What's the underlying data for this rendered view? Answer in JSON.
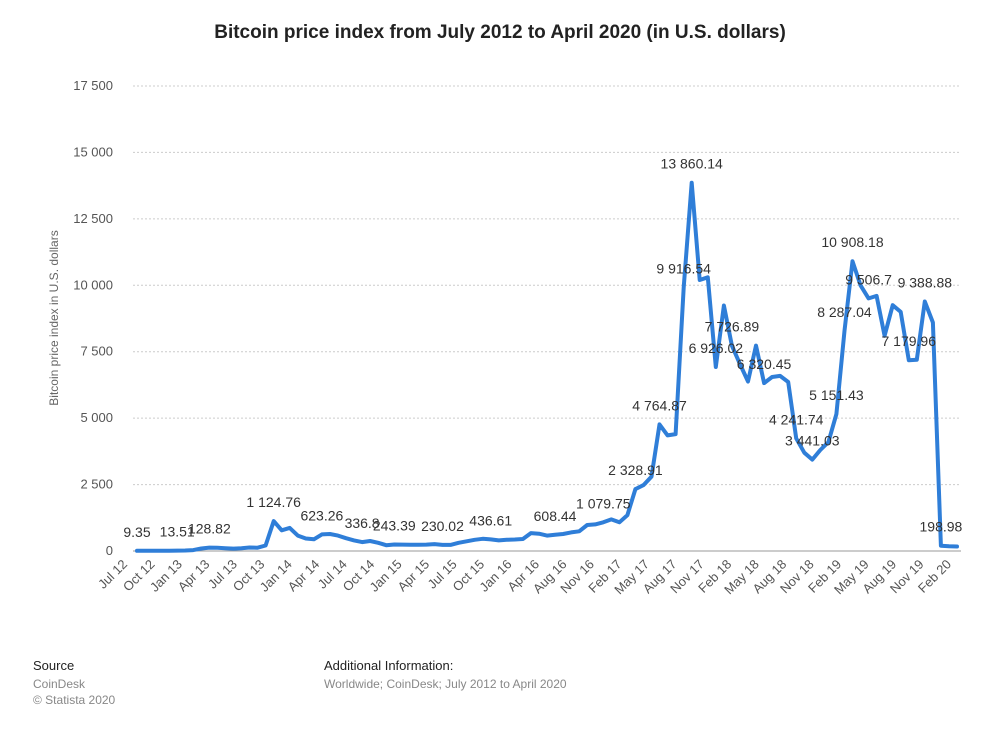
{
  "chart_data": {
    "type": "line",
    "title": "Bitcoin price index from July 2012 to April 2020 (in U.S. dollars)",
    "xlabel": "",
    "ylabel": "Bitcoin price index in U.S. dollars",
    "ylim": [
      0,
      17500
    ],
    "yticks": [
      0,
      2500,
      5000,
      7500,
      10000,
      12500,
      15000,
      17500
    ],
    "ytick_labels": [
      "0",
      "2 500",
      "5 000",
      "7 500",
      "10 000",
      "12 500",
      "15 000",
      "17 500"
    ],
    "grid": true,
    "legend": "none",
    "colors": {
      "line": "#2f7ed8",
      "grid": "#cccccc",
      "text": "#333333"
    },
    "xtick_labels": [
      "Jul 12",
      "Oct 12",
      "Jan 13",
      "Apr 13",
      "Jul 13",
      "Oct 13",
      "Jan 14",
      "Apr 14",
      "Jul 14",
      "Oct 14",
      "Jan 15",
      "Apr 15",
      "Jul 15",
      "Oct 15",
      "Jan 16",
      "Apr 16",
      "Aug 16",
      "Nov 16",
      "Feb 17",
      "May 17",
      "Aug 17",
      "Nov 17",
      "Feb 18",
      "May 18",
      "Aug 18",
      "Nov 18",
      "Feb 19",
      "May 19",
      "Aug 19",
      "Nov 19",
      "Feb 20"
    ],
    "series": [
      {
        "values": [
          9.35,
          11,
          10.5,
          11.5,
          12.5,
          13.51,
          20,
          33,
          95,
          128.82,
          120,
          105,
          90,
          100,
          130,
          124,
          206,
          1124.76,
          780,
          870,
          580,
          470,
          440,
          623.26,
          640,
          580,
          480,
          400,
          336.8,
          375,
          310,
          220,
          243.39,
          240,
          236,
          232,
          240,
          260,
          230.02,
          228,
          310,
          365,
          420,
          460,
          436.61,
          400,
          420,
          432,
          450,
          672,
          650,
          580,
          608.44,
          640,
          700,
          740,
          980,
          1000,
          1079.75,
          1190,
          1080,
          1350,
          2328.91,
          2480,
          2800,
          4764.87,
          4350,
          4400,
          9916.54,
          13860.14,
          10200,
          10300,
          6926.02,
          9240,
          7726.89,
          7040,
          6380,
          7730,
          6320.45,
          6550,
          6590,
          6360,
          4241.74,
          3700,
          3441.03,
          3800,
          4100,
          5151.43,
          8287.04,
          10908.18,
          10000,
          9506.7,
          9600,
          8100,
          9250,
          9000,
          7179.96,
          7200,
          9388.88,
          8600,
          198.98,
          180,
          170
        ],
        "type": "line"
      }
    ],
    "data_labels": [
      {
        "text": "9.35",
        "x": 0,
        "y": 9.35
      },
      {
        "text": "13.51",
        "x": 5,
        "y": 13.51
      },
      {
        "text": "128.82",
        "x": 9,
        "y": 128.82
      },
      {
        "text": "1 124.76",
        "x": 17,
        "y": 1124.76
      },
      {
        "text": "623.26",
        "x": 23,
        "y": 623.26
      },
      {
        "text": "336.8",
        "x": 28,
        "y": 336.8
      },
      {
        "text": "243.39",
        "x": 32,
        "y": 243.39
      },
      {
        "text": "230.02",
        "x": 38,
        "y": 230.02
      },
      {
        "text": "436.61",
        "x": 44,
        "y": 436.61
      },
      {
        "text": "608.44",
        "x": 52,
        "y": 608.44
      },
      {
        "text": "1 079.75",
        "x": 58,
        "y": 1079.75
      },
      {
        "text": "2 328.91",
        "x": 62,
        "y": 2328.91
      },
      {
        "text": "4 764.87",
        "x": 65,
        "y": 4764.87
      },
      {
        "text": "9 916.54",
        "x": 68,
        "y": 9916.54
      },
      {
        "text": "13 860.14",
        "x": 69,
        "y": 13860.14
      },
      {
        "text": "6 926.02",
        "x": 72,
        "y": 6926.02
      },
      {
        "text": "7 726.89",
        "x": 74,
        "y": 7726.89
      },
      {
        "text": "6 320.45",
        "x": 78,
        "y": 6320.45
      },
      {
        "text": "4 241.74",
        "x": 82,
        "y": 4241.74
      },
      {
        "text": "3 441.03",
        "x": 84,
        "y": 3441.03
      },
      {
        "text": "5 151.43",
        "x": 87,
        "y": 5151.43
      },
      {
        "text": "8 287.04",
        "x": 88,
        "y": 8287.04
      },
      {
        "text": "10 908.18",
        "x": 89,
        "y": 10908.18
      },
      {
        "text": "9 506.7",
        "x": 91,
        "y": 9506.7
      },
      {
        "text": "7 179.96",
        "x": 96,
        "y": 7179.96
      },
      {
        "text": "9 388.88",
        "x": 98,
        "y": 9388.88
      },
      {
        "text": "198.98",
        "x": 100,
        "y": 198.98
      }
    ]
  },
  "footer": {
    "source_heading": "Source",
    "source_lines": [
      "CoinDesk",
      "© Statista 2020"
    ],
    "info_heading": "Additional Information:",
    "info_lines": [
      "Worldwide; CoinDesk; July 2012 to April 2020"
    ]
  }
}
